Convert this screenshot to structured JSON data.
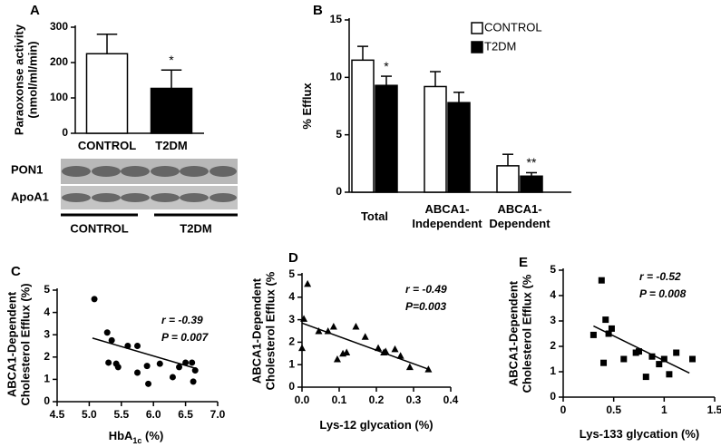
{
  "chart_data": [
    {
      "panel": "A",
      "type": "bar",
      "ylabel": "Paraoxonse activity\n(nmol/ml/min)",
      "categories": [
        "CONTROL",
        "T2DM"
      ],
      "values": [
        225,
        127
      ],
      "errors": [
        55,
        52
      ],
      "colors": [
        "#ffffff",
        "#000000"
      ],
      "ylim": [
        0,
        300
      ],
      "yticks": [
        0,
        100,
        200,
        300
      ],
      "annotations": [
        {
          "text": "*",
          "category": 1
        }
      ],
      "blot": {
        "rows": [
          "PON1",
          "ApoA1"
        ],
        "groups": [
          "CONTROL",
          "T2DM"
        ]
      }
    },
    {
      "panel": "B",
      "type": "bar",
      "ylabel": "% Efflux",
      "categories": [
        "Total",
        "ABCA1-\nIndependent",
        "ABCA1-\nDependent"
      ],
      "series": [
        {
          "name": "CONTROL",
          "color": "#ffffff",
          "values": [
            11.5,
            9.2,
            2.3
          ],
          "errors": [
            1.2,
            1.3,
            1.0
          ]
        },
        {
          "name": "T2DM",
          "color": "#000000",
          "values": [
            9.3,
            7.8,
            1.4
          ],
          "errors": [
            0.8,
            0.9,
            0.3
          ]
        }
      ],
      "ylim": [
        0,
        15
      ],
      "yticks": [
        0,
        5,
        10,
        15
      ],
      "legend": "top-right",
      "annotations": [
        {
          "text": "*",
          "category": 0,
          "series": 1
        },
        {
          "text": "**",
          "category": 2,
          "series": 1
        }
      ]
    },
    {
      "panel": "C",
      "type": "scatter",
      "marker": "circle",
      "ylabel": "ABCA1-Dependent\nCholesterol Efflux (%)",
      "xlabel": {
        "text": "HbA",
        "sub": "1c",
        "unit": " (%)"
      },
      "x": [
        5.08,
        5.28,
        5.3,
        5.35,
        5.42,
        5.45,
        5.6,
        5.75,
        5.75,
        5.9,
        5.92,
        6.1,
        6.3,
        6.4,
        6.5,
        6.6,
        6.62,
        6.65
      ],
      "y": [
        4.6,
        3.1,
        1.75,
        2.75,
        1.7,
        1.55,
        2.5,
        2.5,
        1.3,
        1.6,
        0.8,
        1.7,
        1.1,
        1.55,
        1.75,
        1.75,
        0.9,
        1.4
      ],
      "fit": {
        "x": [
          5.05,
          6.65
        ],
        "y": [
          2.85,
          1.5
        ]
      },
      "stats": [
        "r = -0.39",
        "P = 0.007"
      ],
      "xlim": [
        4.5,
        7.0
      ],
      "xticks": [
        4.5,
        {
          "value": 5,
          "label": "5.0"
        },
        5.5,
        {
          "value": 6,
          "label": "6.0"
        },
        6.5,
        {
          "value": 7,
          "label": "7.0"
        }
      ],
      "ylim": [
        0,
        5
      ],
      "yticks": [
        0,
        1,
        2,
        3,
        4,
        5
      ]
    },
    {
      "panel": "D",
      "type": "scatter",
      "marker": "triangle",
      "ylabel": "ABCA1-Dependent\nCholesterol Efflux (%",
      "xlabel": {
        "text": "Lys-12 glycation (%)"
      },
      "x": [
        0,
        0.005,
        0.015,
        0.045,
        0.07,
        0.085,
        0.095,
        0.11,
        0.12,
        0.145,
        0.17,
        0.205,
        0.22,
        0.225,
        0.25,
        0.265,
        0.29,
        0.34
      ],
      "y": [
        1.75,
        3.05,
        4.6,
        2.5,
        2.5,
        2.7,
        1.25,
        1.5,
        1.55,
        2.7,
        2.25,
        1.75,
        1.55,
        1.6,
        1.7,
        1.4,
        0.9,
        0.8
      ],
      "fit": {
        "x": [
          0,
          0.34
        ],
        "y": [
          2.85,
          0.8
        ]
      },
      "stats": [
        "r = -0.49",
        "P=0.003"
      ],
      "xlim": [
        0,
        0.4
      ],
      "xticks": [
        {
          "value": 0,
          "label": "0.0"
        },
        0.1,
        0.2,
        0.3,
        0.4
      ],
      "ylim": [
        0,
        5
      ],
      "yticks": [
        0,
        1,
        2,
        3,
        4,
        5
      ]
    },
    {
      "panel": "E",
      "type": "scatter",
      "marker": "square",
      "ylabel": "ABCA1-Dependent\nCholesterol Efflux (%",
      "xlabel": {
        "text": "Lys-133 glycation (%)"
      },
      "x": [
        0.3,
        0.38,
        0.4,
        0.42,
        0.45,
        0.48,
        0.6,
        0.72,
        0.75,
        0.82,
        0.88,
        0.95,
        1.0,
        1.05,
        1.12,
        1.28
      ],
      "y": [
        2.45,
        4.6,
        1.35,
        3.05,
        2.5,
        2.7,
        1.5,
        1.75,
        1.8,
        0.8,
        1.6,
        1.3,
        1.5,
        0.9,
        1.75,
        1.5
      ],
      "fit": {
        "x": [
          0.3,
          1.25
        ],
        "y": [
          2.8,
          0.95
        ]
      },
      "stats": [
        "r = -0.52",
        "P = 0.008"
      ],
      "xlim": [
        0,
        1.5
      ],
      "xticks": [
        0,
        0.5,
        1,
        1.5
      ],
      "ylim": [
        0,
        5
      ],
      "yticks": [
        0,
        1,
        2,
        3,
        4,
        5
      ]
    }
  ]
}
